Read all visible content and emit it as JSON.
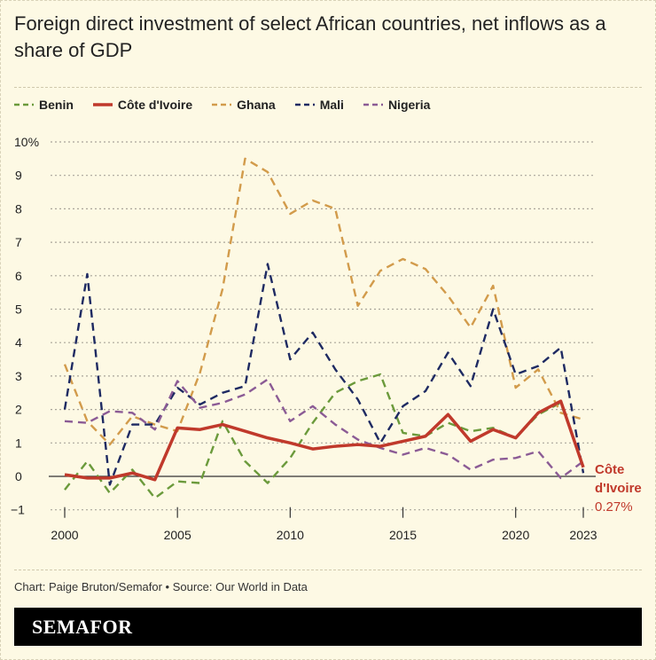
{
  "title": "Foreign direct investment of select African countries, net inflows as a share of GDP",
  "credit": "Chart: Paige Bruton/Semafor • Source: Our World in Data",
  "brand": "SEMAFOR",
  "chart_data": {
    "type": "line",
    "title": "Foreign direct investment of select African countries, net inflows as a share of GDP",
    "x": [
      2000,
      2001,
      2002,
      2003,
      2004,
      2005,
      2006,
      2007,
      2008,
      2009,
      2010,
      2011,
      2012,
      2013,
      2014,
      2015,
      2016,
      2017,
      2018,
      2019,
      2020,
      2021,
      2022,
      2023
    ],
    "xticks": [
      "2000",
      "2005",
      "2010",
      "2015",
      "2020",
      "2023"
    ],
    "xtick_values": [
      2000,
      2005,
      2010,
      2015,
      2020,
      2023
    ],
    "yticks": [
      "10%",
      "9",
      "8",
      "7",
      "6",
      "5",
      "4",
      "3",
      "2",
      "1",
      "0",
      "−1"
    ],
    "ytick_values": [
      10,
      9,
      8,
      7,
      6,
      5,
      4,
      3,
      2,
      1,
      0,
      -1
    ],
    "ylim": [
      -1,
      10
    ],
    "xlim": [
      2000,
      2023
    ],
    "grid": true,
    "legend_position": "top",
    "series": [
      {
        "name": "Benin",
        "color": "#6b9a3b",
        "style": "dashed",
        "values": [
          -0.4,
          0.45,
          -0.5,
          0.2,
          -0.65,
          -0.15,
          -0.2,
          1.65,
          0.45,
          -0.2,
          0.55,
          1.6,
          2.5,
          2.85,
          3.05,
          1.3,
          1.2,
          1.6,
          1.35,
          1.45,
          1.15,
          1.85,
          2.2,
          0.27
        ]
      },
      {
        "name": "Côte d'Ivoire",
        "color": "#c0392b",
        "style": "solid",
        "values": [
          0.05,
          -0.05,
          -0.05,
          0.1,
          -0.1,
          1.45,
          1.4,
          1.55,
          1.35,
          1.15,
          1.0,
          0.82,
          0.9,
          0.95,
          0.9,
          1.05,
          1.2,
          1.85,
          1.05,
          1.4,
          1.15,
          1.9,
          2.25,
          0.27
        ]
      },
      {
        "name": "Ghana",
        "color": "#d29b4b",
        "style": "dashed",
        "values": [
          3.35,
          1.65,
          0.95,
          1.8,
          1.55,
          1.35,
          3.1,
          5.6,
          9.5,
          9.1,
          7.85,
          8.25,
          8.0,
          5.1,
          6.15,
          6.5,
          6.2,
          5.4,
          4.45,
          5.7,
          2.65,
          3.2,
          1.9,
          1.7
        ]
      },
      {
        "name": "Mali",
        "color": "#1e2a62",
        "style": "dashed",
        "values": [
          2.0,
          6.05,
          -0.25,
          1.55,
          1.55,
          2.65,
          2.15,
          2.5,
          2.7,
          6.35,
          3.5,
          4.3,
          3.2,
          2.3,
          1.0,
          2.1,
          2.55,
          3.7,
          2.7,
          5.0,
          3.05,
          3.3,
          3.85,
          0.1
        ]
      },
      {
        "name": "Nigeria",
        "color": "#8b5b95",
        "style": "dashed",
        "values": [
          1.65,
          1.6,
          1.95,
          1.9,
          1.4,
          2.85,
          2.05,
          2.2,
          2.45,
          2.9,
          1.65,
          2.1,
          1.55,
          1.1,
          0.85,
          0.65,
          0.85,
          0.65,
          0.2,
          0.5,
          0.55,
          0.75,
          -0.05,
          0.45
        ]
      }
    ],
    "annotation": {
      "label_line1": "Côte",
      "label_line2": "d'Ivoire",
      "value": "0.27%",
      "color": "#c0392b"
    }
  }
}
